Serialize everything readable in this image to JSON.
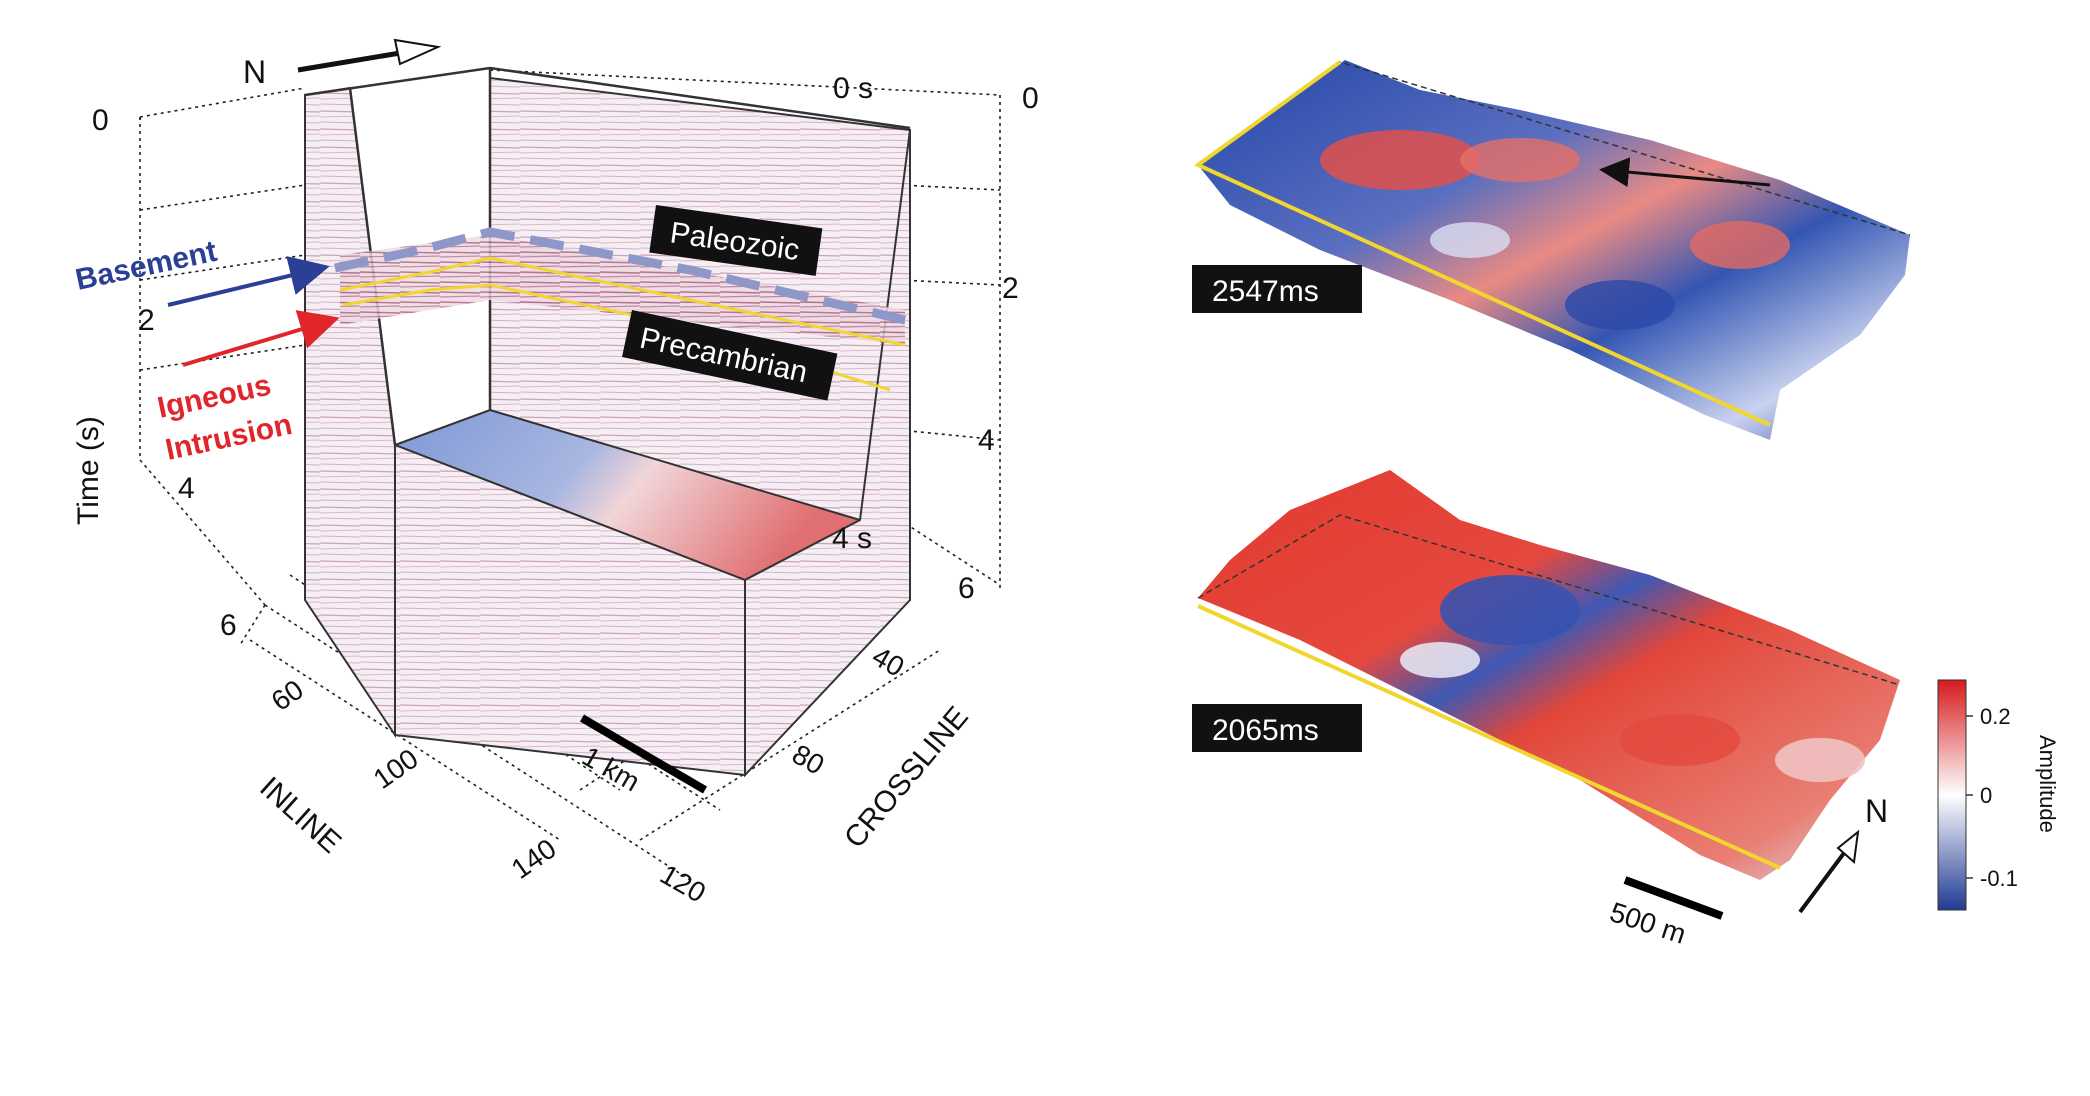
{
  "cube": {
    "north_label": "N",
    "time_top_left": "0",
    "time_top_right": "0",
    "zero_s": "0 s",
    "four_s": "4 s",
    "time_axis_label": "Time (s)",
    "time_ticks_left": [
      "2",
      "4",
      "6"
    ],
    "time_ticks_right": [
      "2",
      "4",
      "6"
    ],
    "inline_label": "INLINE",
    "inline_ticks": [
      "60",
      "100",
      "140"
    ],
    "crossline_label": "CROSSLINE",
    "crossline_ticks": [
      "40",
      "80",
      "120"
    ],
    "scale_label": "1 km",
    "paleozoic": "Paleozoic",
    "precambrian": "Precambrian",
    "basement": "Basement",
    "igneous_line1": "Igneous",
    "igneous_line2": "Intrusion",
    "colors": {
      "basement": "#2a3f95",
      "igneous": "#e0262b",
      "horizon": "#f2d630",
      "dashed": "#8e97c8"
    }
  },
  "slices": {
    "top_label": "2547ms",
    "bottom_label": "2065ms",
    "scale_label": "500 m",
    "north_label": "N"
  },
  "colorbar": {
    "title": "Amplitude",
    "ticks": [
      "0.2",
      "0",
      "-0.1"
    ],
    "colors": {
      "high": "#d7191c",
      "mid": "#ffffff",
      "low": "#1f3a93"
    }
  }
}
